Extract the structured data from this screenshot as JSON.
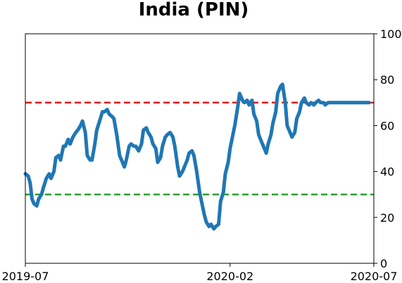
{
  "chart_data": {
    "type": "line",
    "title": "India (PIN)",
    "xlabel": "",
    "ylabel": "",
    "x_ticks": [
      "2019-07",
      "2020-02",
      "2020-07"
    ],
    "y_ticks": [
      "0",
      "20",
      "40",
      "60",
      "80",
      "100"
    ],
    "xlim": [
      "2019-07-01",
      "2020-07-01"
    ],
    "ylim": [
      0,
      100
    ],
    "y_axis_side": "right",
    "grid": false,
    "reference_lines": [
      {
        "y": 70,
        "color": "#e31a1c",
        "style": "dashed"
      },
      {
        "y": 30,
        "color": "#2ca02c",
        "style": "dashed"
      }
    ],
    "series": [
      {
        "color": "#1f77b4",
        "x": [
          "2019-07-01",
          "2019-07-04",
          "2019-07-06",
          "2019-07-08",
          "2019-07-10",
          "2019-07-13",
          "2019-07-15",
          "2019-07-18",
          "2019-07-20",
          "2019-07-23",
          "2019-07-26",
          "2019-07-28",
          "2019-07-31",
          "2019-08-02",
          "2019-08-05",
          "2019-08-07",
          "2019-08-10",
          "2019-08-12",
          "2019-08-15",
          "2019-08-17",
          "2019-08-20",
          "2019-08-23",
          "2019-08-25",
          "2019-08-28",
          "2019-08-30",
          "2019-09-02",
          "2019-09-04",
          "2019-09-07",
          "2019-09-09",
          "2019-09-12",
          "2019-09-14",
          "2019-09-17",
          "2019-09-20",
          "2019-09-22",
          "2019-09-25",
          "2019-09-27",
          "2019-09-30",
          "2019-10-02",
          "2019-10-05",
          "2019-10-08",
          "2019-10-10",
          "2019-10-13",
          "2019-10-15",
          "2019-10-18",
          "2019-10-20",
          "2019-10-23",
          "2019-10-25",
          "2019-10-28",
          "2019-10-31",
          "2019-11-02",
          "2019-11-05",
          "2019-11-07",
          "2019-11-10",
          "2019-11-12",
          "2019-11-15",
          "2019-11-17",
          "2019-11-20",
          "2019-11-22",
          "2019-11-25",
          "2019-11-27",
          "2019-11-30",
          "2019-12-03",
          "2019-12-05",
          "2019-12-08",
          "2019-12-10",
          "2019-12-13",
          "2019-12-15",
          "2019-12-18",
          "2019-12-20",
          "2019-12-23",
          "2019-12-25",
          "2019-12-28",
          "2019-12-31",
          "2020-01-02",
          "2020-01-05",
          "2020-01-07",
          "2020-01-10",
          "2020-01-12",
          "2020-01-15",
          "2020-01-17",
          "2020-01-20",
          "2020-01-22",
          "2020-01-25",
          "2020-01-27",
          "2020-01-30",
          "2020-02-01",
          "2020-02-04",
          "2020-02-06",
          "2020-02-09",
          "2020-02-11",
          "2020-02-14",
          "2020-02-16",
          "2020-02-19",
          "2020-02-21",
          "2020-02-24",
          "2020-02-26",
          "2020-02-29",
          "2020-03-02",
          "2020-03-05",
          "2020-03-07",
          "2020-03-10",
          "2020-03-12",
          "2020-03-15",
          "2020-03-17",
          "2020-03-20",
          "2020-03-22",
          "2020-03-25",
          "2020-03-27",
          "2020-03-30",
          "2020-04-01",
          "2020-04-04",
          "2020-04-06",
          "2020-04-09",
          "2020-04-11",
          "2020-04-14",
          "2020-04-16",
          "2020-04-19",
          "2020-04-21",
          "2020-04-24",
          "2020-04-26",
          "2020-04-29",
          "2020-05-01",
          "2020-05-04",
          "2020-05-06",
          "2020-05-09",
          "2020-05-11",
          "2020-05-14",
          "2020-05-17",
          "2020-05-19",
          "2020-05-22",
          "2020-05-24",
          "2020-05-27",
          "2020-05-29",
          "2020-06-01",
          "2020-06-03",
          "2020-06-06",
          "2020-06-08",
          "2020-06-11",
          "2020-06-13",
          "2020-06-16",
          "2020-06-18",
          "2020-06-21",
          "2020-06-23",
          "2020-06-26"
        ],
        "y": [
          39,
          38,
          35,
          28,
          26,
          25,
          28,
          30,
          33,
          37,
          39,
          37,
          40,
          46,
          47,
          45,
          51,
          51,
          54,
          52,
          55,
          57,
          58,
          60,
          62,
          57,
          47,
          45,
          45,
          52,
          58,
          62,
          66,
          66,
          67,
          65,
          64,
          63,
          56,
          47,
          45,
          42,
          45,
          51,
          52,
          51,
          51,
          49,
          52,
          58,
          59,
          57,
          55,
          52,
          50,
          44,
          46,
          51,
          55,
          56,
          57,
          55,
          51,
          42,
          38,
          40,
          42,
          45,
          48,
          49,
          47,
          40,
          31,
          27,
          21,
          18,
          16,
          17,
          15,
          16,
          17,
          27,
          31,
          39,
          44,
          50,
          56,
          60,
          68,
          74,
          71,
          70,
          71,
          69,
          71,
          65,
          62,
          56,
          53,
          51,
          48,
          52,
          56,
          61,
          66,
          74,
          77,
          78,
          70,
          60,
          57,
          55,
          57,
          63,
          66,
          70,
          72,
          70,
          69,
          70,
          69,
          70,
          71,
          70,
          70,
          69,
          70,
          70,
          70,
          70,
          70,
          70,
          70,
          70,
          70,
          70,
          70,
          70,
          70,
          70,
          70,
          70,
          70,
          70
        ]
      }
    ]
  }
}
